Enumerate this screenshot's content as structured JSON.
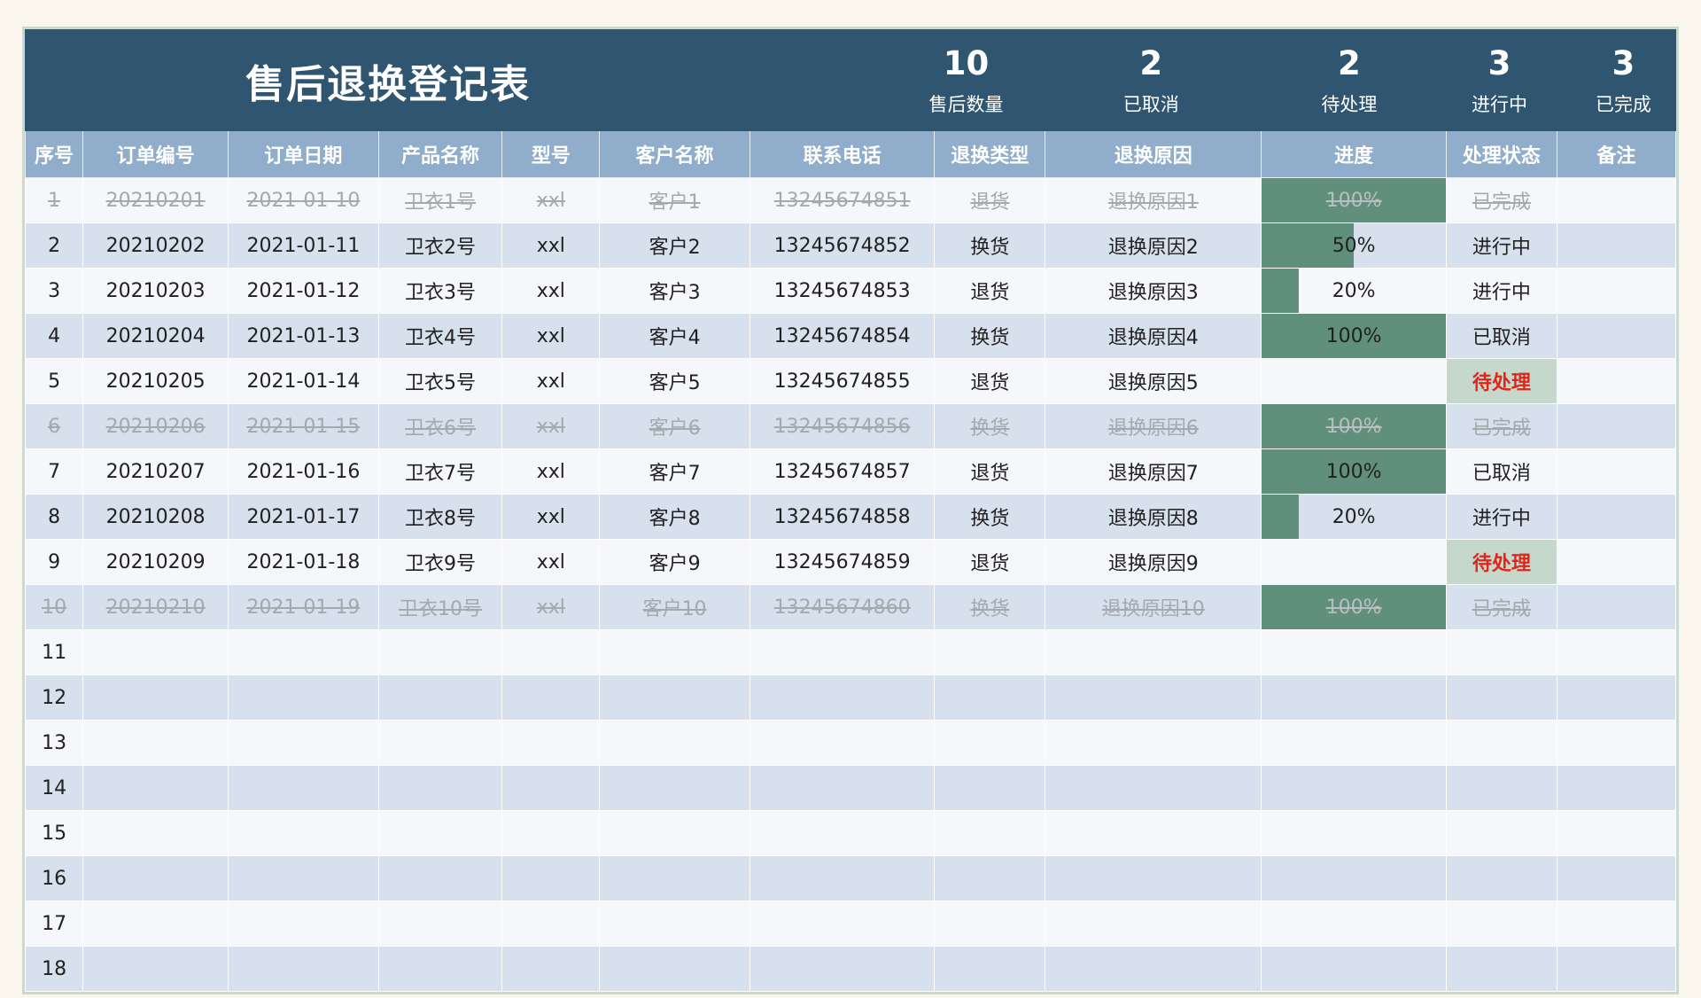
{
  "header": {
    "title": "售后退换登记表",
    "stats": [
      {
        "value": "10",
        "label": "售后数量"
      },
      {
        "value": "2",
        "label": "已取消"
      },
      {
        "value": "2",
        "label": "待处理"
      },
      {
        "value": "3",
        "label": "进行中"
      },
      {
        "value": "3",
        "label": "已完成"
      }
    ]
  },
  "table": {
    "columns": [
      {
        "key": "no",
        "label": "序号"
      },
      {
        "key": "order_no",
        "label": "订单编号"
      },
      {
        "key": "date",
        "label": "订单日期"
      },
      {
        "key": "product",
        "label": "产品名称"
      },
      {
        "key": "model",
        "label": "型号"
      },
      {
        "key": "customer",
        "label": "客户名称"
      },
      {
        "key": "phone",
        "label": "联系电话"
      },
      {
        "key": "type",
        "label": "退换类型"
      },
      {
        "key": "reason",
        "label": "退换原因"
      },
      {
        "key": "progress",
        "label": "进度"
      },
      {
        "key": "status",
        "label": "处理状态"
      },
      {
        "key": "remark",
        "label": "备注"
      }
    ],
    "rows": [
      {
        "no": "1",
        "order_no": "20210201",
        "date": "2021-01-10",
        "product": "卫衣1号",
        "model": "xxl",
        "customer": "客户1",
        "phone": "13245674851",
        "type": "退货",
        "reason": "退换原因1",
        "progress": 100,
        "progress_label": "100%",
        "status": "已完成",
        "remark": "",
        "done": true,
        "pending": false
      },
      {
        "no": "2",
        "order_no": "20210202",
        "date": "2021-01-11",
        "product": "卫衣2号",
        "model": "xxl",
        "customer": "客户2",
        "phone": "13245674852",
        "type": "换货",
        "reason": "退换原因2",
        "progress": 50,
        "progress_label": "50%",
        "status": "进行中",
        "remark": "",
        "done": false,
        "pending": false
      },
      {
        "no": "3",
        "order_no": "20210203",
        "date": "2021-01-12",
        "product": "卫衣3号",
        "model": "xxl",
        "customer": "客户3",
        "phone": "13245674853",
        "type": "退货",
        "reason": "退换原因3",
        "progress": 20,
        "progress_label": "20%",
        "status": "进行中",
        "remark": "",
        "done": false,
        "pending": false
      },
      {
        "no": "4",
        "order_no": "20210204",
        "date": "2021-01-13",
        "product": "卫衣4号",
        "model": "xxl",
        "customer": "客户4",
        "phone": "13245674854",
        "type": "换货",
        "reason": "退换原因4",
        "progress": 100,
        "progress_label": "100%",
        "status": "已取消",
        "remark": "",
        "done": false,
        "pending": false
      },
      {
        "no": "5",
        "order_no": "20210205",
        "date": "2021-01-14",
        "product": "卫衣5号",
        "model": "xxl",
        "customer": "客户5",
        "phone": "13245674855",
        "type": "退货",
        "reason": "退换原因5",
        "progress": null,
        "progress_label": "",
        "status": "待处理",
        "remark": "",
        "done": false,
        "pending": true
      },
      {
        "no": "6",
        "order_no": "20210206",
        "date": "2021-01-15",
        "product": "卫衣6号",
        "model": "xxl",
        "customer": "客户6",
        "phone": "13245674856",
        "type": "换货",
        "reason": "退换原因6",
        "progress": 100,
        "progress_label": "100%",
        "status": "已完成",
        "remark": "",
        "done": true,
        "pending": false
      },
      {
        "no": "7",
        "order_no": "20210207",
        "date": "2021-01-16",
        "product": "卫衣7号",
        "model": "xxl",
        "customer": "客户7",
        "phone": "13245674857",
        "type": "退货",
        "reason": "退换原因7",
        "progress": 100,
        "progress_label": "100%",
        "status": "已取消",
        "remark": "",
        "done": false,
        "pending": false
      },
      {
        "no": "8",
        "order_no": "20210208",
        "date": "2021-01-17",
        "product": "卫衣8号",
        "model": "xxl",
        "customer": "客户8",
        "phone": "13245674858",
        "type": "换货",
        "reason": "退换原因8",
        "progress": 20,
        "progress_label": "20%",
        "status": "进行中",
        "remark": "",
        "done": false,
        "pending": false
      },
      {
        "no": "9",
        "order_no": "20210209",
        "date": "2021-01-18",
        "product": "卫衣9号",
        "model": "xxl",
        "customer": "客户9",
        "phone": "13245674859",
        "type": "退货",
        "reason": "退换原因9",
        "progress": null,
        "progress_label": "",
        "status": "待处理",
        "remark": "",
        "done": false,
        "pending": true
      },
      {
        "no": "10",
        "order_no": "20210210",
        "date": "2021-01-19",
        "product": "卫衣10号",
        "model": "xxl",
        "customer": "客户10",
        "phone": "13245674860",
        "type": "换货",
        "reason": "退换原因10",
        "progress": 100,
        "progress_label": "100%",
        "status": "已完成",
        "remark": "",
        "done": true,
        "pending": false
      },
      {
        "no": "11",
        "order_no": "",
        "date": "",
        "product": "",
        "model": "",
        "customer": "",
        "phone": "",
        "type": "",
        "reason": "",
        "progress": null,
        "progress_label": "",
        "status": "",
        "remark": "",
        "done": false,
        "pending": false
      },
      {
        "no": "12",
        "order_no": "",
        "date": "",
        "product": "",
        "model": "",
        "customer": "",
        "phone": "",
        "type": "",
        "reason": "",
        "progress": null,
        "progress_label": "",
        "status": "",
        "remark": "",
        "done": false,
        "pending": false
      },
      {
        "no": "13",
        "order_no": "",
        "date": "",
        "product": "",
        "model": "",
        "customer": "",
        "phone": "",
        "type": "",
        "reason": "",
        "progress": null,
        "progress_label": "",
        "status": "",
        "remark": "",
        "done": false,
        "pending": false
      },
      {
        "no": "14",
        "order_no": "",
        "date": "",
        "product": "",
        "model": "",
        "customer": "",
        "phone": "",
        "type": "",
        "reason": "",
        "progress": null,
        "progress_label": "",
        "status": "",
        "remark": "",
        "done": false,
        "pending": false
      },
      {
        "no": "15",
        "order_no": "",
        "date": "",
        "product": "",
        "model": "",
        "customer": "",
        "phone": "",
        "type": "",
        "reason": "",
        "progress": null,
        "progress_label": "",
        "status": "",
        "remark": "",
        "done": false,
        "pending": false
      },
      {
        "no": "16",
        "order_no": "",
        "date": "",
        "product": "",
        "model": "",
        "customer": "",
        "phone": "",
        "type": "",
        "reason": "",
        "progress": null,
        "progress_label": "",
        "status": "",
        "remark": "",
        "done": false,
        "pending": false
      },
      {
        "no": "17",
        "order_no": "",
        "date": "",
        "product": "",
        "model": "",
        "customer": "",
        "phone": "",
        "type": "",
        "reason": "",
        "progress": null,
        "progress_label": "",
        "status": "",
        "remark": "",
        "done": false,
        "pending": false
      },
      {
        "no": "18",
        "order_no": "",
        "date": "",
        "product": "",
        "model": "",
        "customer": "",
        "phone": "",
        "type": "",
        "reason": "",
        "progress": null,
        "progress_label": "",
        "status": "",
        "remark": "",
        "done": false,
        "pending": false
      }
    ]
  },
  "colors": {
    "banner_navy": "#305571",
    "column_header_blue": "#90aecb",
    "row_blue": "#d6e1ed",
    "row_white": "#f5f7fa",
    "progress_green": "#60907b",
    "pending_bg_green": "#c6d7cb",
    "pending_text_red": "#e1251b",
    "done_text_gray": "#a4a9ae",
    "page_bg": "#faf6ee"
  }
}
